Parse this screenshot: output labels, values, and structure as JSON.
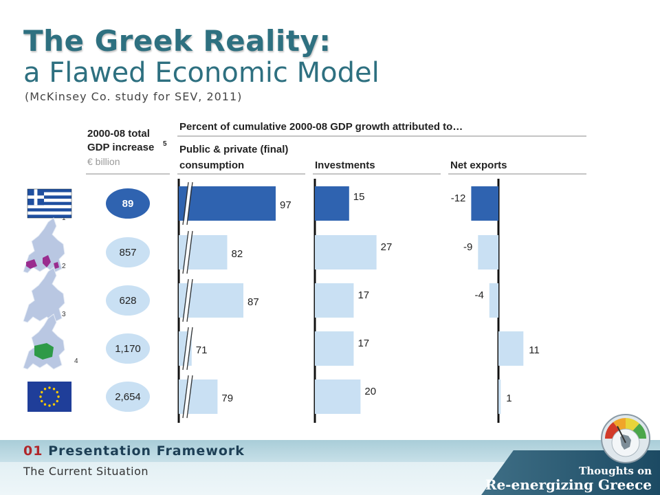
{
  "title": {
    "line1": "The Greek Reality:",
    "line2": "a Flawed Economic Model",
    "source": "(McKinsey Co. study for SEV, 2011)"
  },
  "chart_data": {
    "type": "bar",
    "title": "Percent of cumulative 2000-08 GDP growth attributed to…",
    "row_header": {
      "line1": "2000-08 total",
      "line2": "GDP increase",
      "superscript": "5",
      "unit": "€ billion"
    },
    "footnote_marks": [
      "",
      "1",
      "2",
      "3",
      "4"
    ],
    "gdp_increase": [
      "89",
      "857",
      "628",
      "1,170",
      "2,654"
    ],
    "highlight_row": 0,
    "series": [
      {
        "name": "Public & private (final) consumption",
        "values": [
          97,
          82,
          87,
          71,
          79
        ],
        "axis_break": true
      },
      {
        "name": "Investments",
        "values": [
          15,
          27,
          17,
          17,
          20
        ]
      },
      {
        "name": "Net exports",
        "values": [
          -12,
          -9,
          -4,
          11,
          1
        ]
      }
    ]
  },
  "colors": {
    "highlight": "#2f63b0",
    "light": "#c9e0f3",
    "title": "#2e7080",
    "greece_flag": "#1f4fa0",
    "eu_flag": "#1f3e99",
    "eu_stars": "#ffcc00"
  },
  "footer": {
    "section_number": "01",
    "section_title": "Presentation Framework",
    "subtitle": "The Current Situation",
    "brand_line1": "Thoughts on",
    "brand_line2": "Re-energizing Greece"
  },
  "icons": [
    "greece-flag-icon",
    "europe-map-icon",
    "eu-flag-icon",
    "gauge-logo-icon"
  ]
}
